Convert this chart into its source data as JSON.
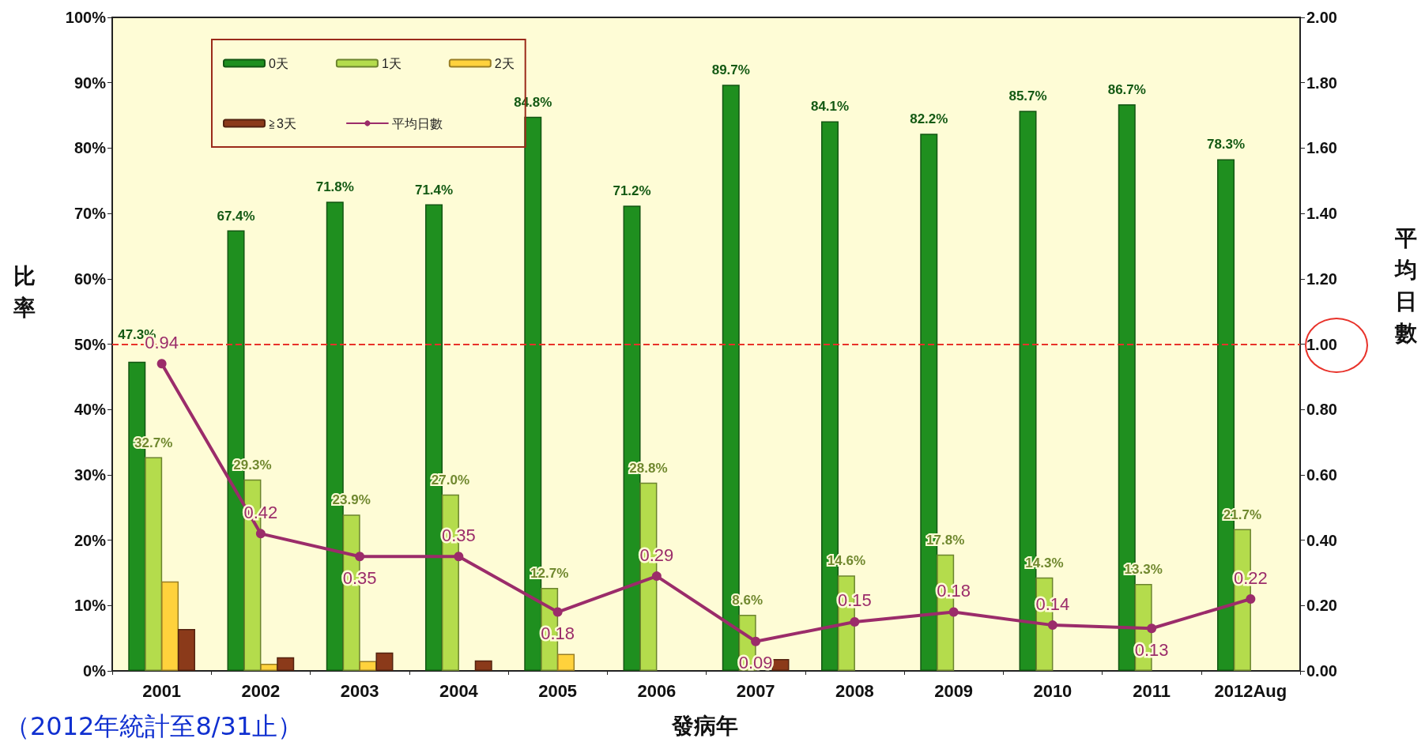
{
  "chart_data": {
    "type": "bar",
    "xlabel": "發病年",
    "ylabel": "比率",
    "y2label": "平均日數",
    "categories": [
      "2001",
      "2002",
      "2003",
      "2004",
      "2005",
      "2006",
      "2007",
      "2008",
      "2009",
      "2010",
      "2011",
      "2012Aug"
    ],
    "series": [
      {
        "name": "0天",
        "color": "#1f8f1f",
        "values": [
          47.3,
          67.4,
          71.8,
          71.4,
          84.8,
          71.2,
          89.7,
          84.1,
          82.2,
          85.7,
          86.7,
          78.3
        ],
        "value_labels": [
          "47.3%",
          "67.4%",
          "71.8%",
          "71.4%",
          "84.8%",
          "71.2%",
          "89.7%",
          "84.1%",
          "82.2%",
          "85.7%",
          "86.7%",
          "78.3%"
        ]
      },
      {
        "name": "1天",
        "color": "#b4dc4c",
        "values": [
          32.7,
          29.3,
          23.9,
          27.0,
          12.7,
          28.8,
          8.6,
          14.6,
          17.8,
          14.3,
          13.3,
          21.7
        ],
        "value_labels": [
          "32.7%",
          "29.3%",
          "23.9%",
          "27.0%",
          "12.7%",
          "28.8%",
          "8.6%",
          "14.6%",
          "17.8%",
          "14.3%",
          "13.3%",
          "21.7%"
        ]
      },
      {
        "name": "2天",
        "color": "#ffd23c",
        "values": [
          13.7,
          1.1,
          1.5,
          null,
          2.6,
          null,
          null,
          null,
          null,
          null,
          null,
          null
        ]
      },
      {
        "name": "≧3天",
        "color": "#8b3a1a",
        "values": [
          6.4,
          2.1,
          2.8,
          1.6,
          null,
          null,
          1.8,
          null,
          null,
          null,
          null,
          null
        ]
      },
      {
        "name": "平均日數",
        "type": "line",
        "axis": "y2",
        "color": "#9b2c6a",
        "marker": "circle",
        "line_style": "solid",
        "values": [
          0.94,
          0.42,
          0.35,
          0.35,
          0.18,
          0.29,
          0.09,
          0.15,
          0.18,
          0.14,
          0.13,
          0.22
        ],
        "value_labels": [
          "0.94",
          "0.42",
          "0.35",
          "0.35",
          "0.18",
          "0.29",
          "0.09",
          "0.15",
          "0.18",
          "0.14",
          "0.13",
          "0.22"
        ]
      }
    ],
    "ylim": [
      0,
      100
    ],
    "yticks": [
      {
        "value": 0,
        "label": "0%"
      },
      {
        "value": 10,
        "label": "10%"
      },
      {
        "value": 20,
        "label": "20%"
      },
      {
        "value": 30,
        "label": "30%"
      },
      {
        "value": 40,
        "label": "40%"
      },
      {
        "value": 50,
        "label": "50%"
      },
      {
        "value": 60,
        "label": "60%"
      },
      {
        "value": 70,
        "label": "70%"
      },
      {
        "value": 80,
        "label": "80%"
      },
      {
        "value": 90,
        "label": "90%"
      },
      {
        "value": 100,
        "label": "100%"
      }
    ],
    "y2lim": [
      0,
      2
    ],
    "y2ticks": [
      {
        "value": 0,
        "label": "0.00"
      },
      {
        "value": 0.2,
        "label": "0.20"
      },
      {
        "value": 0.4,
        "label": "0.40"
      },
      {
        "value": 0.6,
        "label": "0.60"
      },
      {
        "value": 0.8,
        "label": "0.80"
      },
      {
        "value": 1,
        "label": "1.00"
      },
      {
        "value": 1.2,
        "label": "1.20"
      },
      {
        "value": 1.4,
        "label": "1.40"
      },
      {
        "value": 1.6,
        "label": "1.60"
      },
      {
        "value": 1.8,
        "label": "1.80"
      },
      {
        "value": 2,
        "label": "2.00"
      }
    ],
    "ref_lines": [
      {
        "axis": "y2",
        "value": 1,
        "color": "#e8322a",
        "line_style": "dashed"
      }
    ],
    "legend": "top left",
    "grid": false,
    "annotations": [
      "（2012年統計至8/31止）"
    ]
  }
}
